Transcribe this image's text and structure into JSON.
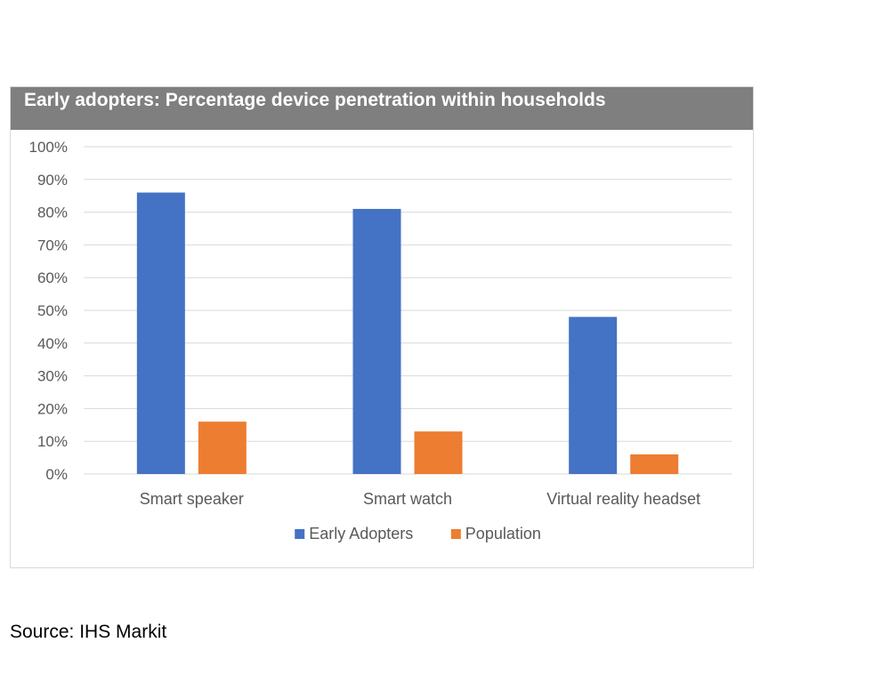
{
  "chart_data": {
    "type": "bar",
    "title": "Early adopters: Percentage device penetration within households",
    "categories": [
      "Smart speaker",
      "Smart watch",
      "Virtual reality headset"
    ],
    "series": [
      {
        "name": "Early Adopters",
        "values": [
          86,
          81,
          48
        ],
        "color": "#4472c4"
      },
      {
        "name": "Population",
        "values": [
          16,
          13,
          6
        ],
        "color": "#ed7d31"
      }
    ],
    "ylim": [
      0,
      100
    ],
    "yticks": [
      "0%",
      "10%",
      "20%",
      "30%",
      "40%",
      "50%",
      "60%",
      "70%",
      "80%",
      "90%",
      "100%"
    ],
    "grid": true,
    "legend_position": "bottom"
  },
  "source": "Source: IHS Markit"
}
